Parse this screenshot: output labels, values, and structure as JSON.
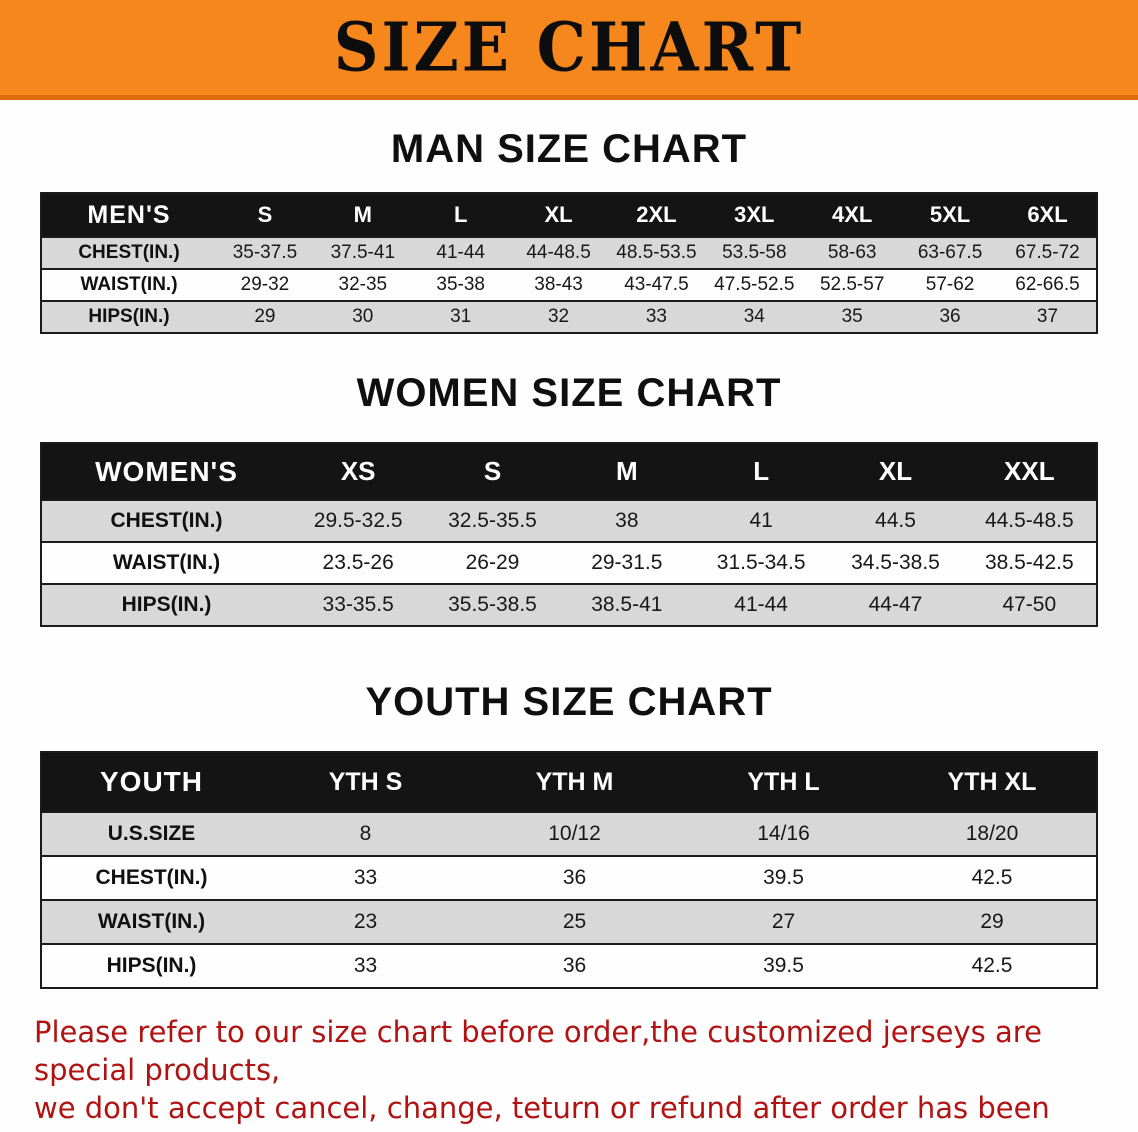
{
  "banner": {
    "title": "SIZE CHART"
  },
  "men": {
    "heading": "MAN SIZE CHART",
    "header": [
      "MEN'S",
      "S",
      "M",
      "L",
      "XL",
      "2XL",
      "3XL",
      "4XL",
      "5XL",
      "6XL"
    ],
    "rows": [
      [
        "CHEST(IN.)",
        "35-37.5",
        "37.5-41",
        "41-44",
        "44-48.5",
        "48.5-53.5",
        "53.5-58",
        "58-63",
        "63-67.5",
        "67.5-72"
      ],
      [
        "WAIST(IN.)",
        "29-32",
        "32-35",
        "35-38",
        "38-43",
        "43-47.5",
        "47.5-52.5",
        "52.5-57",
        "57-62",
        "62-66.5"
      ],
      [
        "HIPS(IN.)",
        "29",
        "30",
        "31",
        "32",
        "33",
        "34",
        "35",
        "36",
        "37"
      ]
    ]
  },
  "women": {
    "heading": "WOMEN SIZE CHART",
    "header": [
      "WOMEN'S",
      "XS",
      "S",
      "M",
      "L",
      "XL",
      "XXL"
    ],
    "rows": [
      [
        "CHEST(IN.)",
        "29.5-32.5",
        "32.5-35.5",
        "38",
        "41",
        "44.5",
        "44.5-48.5"
      ],
      [
        "WAIST(IN.)",
        "23.5-26",
        "26-29",
        "29-31.5",
        "31.5-34.5",
        "34.5-38.5",
        "38.5-42.5"
      ],
      [
        "HIPS(IN.)",
        "33-35.5",
        "35.5-38.5",
        "38.5-41",
        "41-44",
        "44-47",
        "47-50"
      ]
    ]
  },
  "youth": {
    "heading": "YOUTH SIZE CHART",
    "header": [
      "YOUTH",
      "YTH S",
      "YTH M",
      "YTH L",
      "YTH XL"
    ],
    "rows": [
      [
        "U.S.SIZE",
        "8",
        "10/12",
        "14/16",
        "18/20"
      ],
      [
        "CHEST(IN.)",
        "33",
        "36",
        "39.5",
        "42.5"
      ],
      [
        "WAIST(IN.)",
        "23",
        "25",
        "27",
        "29"
      ],
      [
        "HIPS(IN.)",
        "33",
        "36",
        "39.5",
        "42.5"
      ]
    ]
  },
  "note": {
    "line1": "Please refer to our size chart before order,the customized jerseys are special products,",
    "line2": "we don't accept cancel, change, teturn or refund after order has been placed!"
  },
  "colors": {
    "banner_bg": "#F6871D",
    "banner_edge": "#DD6F0F",
    "table_header_bg": "#141414",
    "row_alt_bg": "#D8D8D8",
    "table_border": "#1B1B1B",
    "note_red": "#B11212"
  }
}
